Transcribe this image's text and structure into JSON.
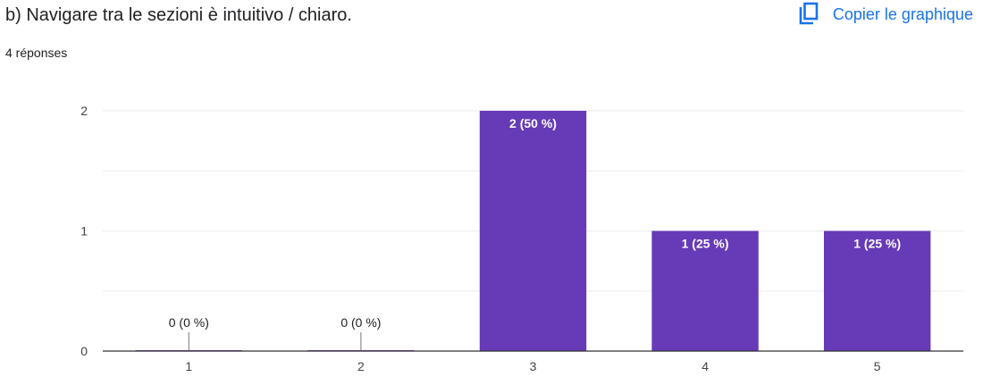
{
  "header": {
    "question_title": "b) Navigare tra le sezioni è intuitivo / chiaro.",
    "response_count": "4 réponses",
    "copy_label": "Copier le graphique",
    "copy_icon": "copy-icon"
  },
  "colors": {
    "bar": "#673ab7",
    "accent": "#1a73e8",
    "grid": "#ebebeb",
    "axis": "#333333",
    "text": "#202124"
  },
  "chart_data": {
    "type": "bar",
    "categories": [
      "1",
      "2",
      "3",
      "4",
      "5"
    ],
    "values": [
      0,
      0,
      2,
      1,
      1
    ],
    "data_labels": [
      "0 (0 %)",
      "0 (0 %)",
      "2 (50 %)",
      "1 (25 %)",
      "1 (25 %)"
    ],
    "ylim": [
      0,
      2
    ],
    "yticks": [
      "0",
      "1",
      "2"
    ],
    "grid": true,
    "title": "",
    "xlabel": "",
    "ylabel": ""
  }
}
